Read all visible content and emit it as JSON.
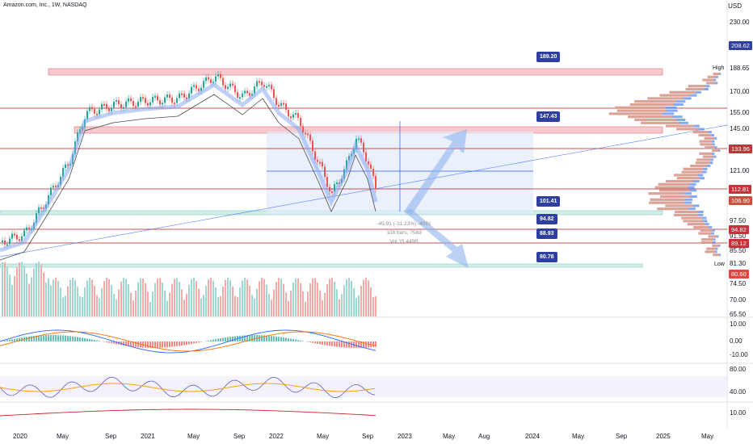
{
  "header": {
    "symbol_line": "Amazon.com, Inc., 1W, NASDAQ",
    "currency": "USD"
  },
  "price_scale": [
    "230.00",
    "188.65",
    "170.00",
    "155.00",
    "145.00",
    "121.00",
    "97.50",
    "91.50",
    "85.50",
    "81.30",
    "74.50",
    "70.00",
    "65.50"
  ],
  "price_tags": [
    {
      "label": "208.62",
      "color": "#2f3fa0"
    },
    {
      "label": "133.96",
      "color": "#c8313a"
    },
    {
      "label": "112.81",
      "color": "#c8313a"
    },
    {
      "label": "106.90",
      "color": "#e0483f"
    },
    {
      "label": "94.82",
      "color": "#c8313a"
    },
    {
      "label": "89.12",
      "color": "#c8313a"
    },
    {
      "label": "80.60",
      "color": "#e0483f"
    }
  ],
  "range_labels": {
    "high": "High",
    "low": "Low"
  },
  "callouts": [
    "189.20",
    "147.43",
    "101.41",
    "94.82",
    "88.93",
    "80.78"
  ],
  "measurement": {
    "change": "-45.91 (-31.23%) -4591",
    "bars": "108 bars, 756d",
    "volume": "Vol 15.449B"
  },
  "macd_scale": [
    "10.00",
    "0.00",
    "-10.00"
  ],
  "rsi_scale": [
    "80.00",
    "40.00"
  ],
  "bottom_scale": [
    "10.00"
  ],
  "time_axis": [
    "2020",
    "May",
    "Sep",
    "2021",
    "May",
    "Sep",
    "2022",
    "May",
    "Sep",
    "2023",
    "May",
    "Aug",
    "2024",
    "May",
    "Sep",
    "2025",
    "May"
  ],
  "colors": {
    "up": "#26a69a",
    "down": "#ef5350",
    "accent": "#2962ff",
    "zone": "#f6c9cf",
    "level": "#b71c1c",
    "callout": "#2f3fa0"
  },
  "chart_data": {
    "type": "line",
    "x": [
      "2020",
      "May",
      "Sep",
      "2021",
      "May",
      "Sep",
      "2022",
      "May",
      "Sep"
    ],
    "series": [
      {
        "values": [
          90,
          95,
          160,
          160,
          168,
          172,
          162,
          108,
          118
        ]
      }
    ],
    "ylim": [
      65.5,
      230
    ]
  }
}
